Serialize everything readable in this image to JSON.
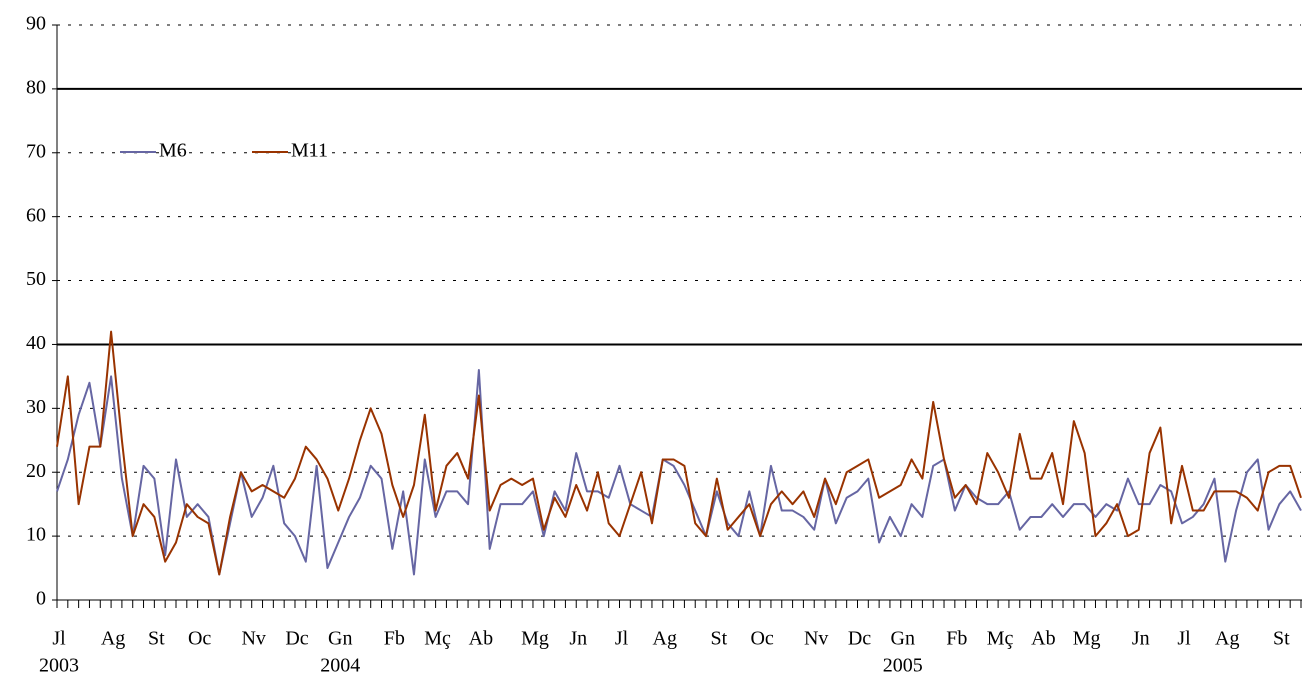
{
  "chart_data": {
    "type": "line",
    "categories": [
      "Jl",
      null,
      null,
      null,
      null,
      "Ag",
      null,
      null,
      null,
      "St",
      null,
      null,
      null,
      "Oc",
      null,
      null,
      null,
      null,
      "Nv",
      null,
      null,
      null,
      "Dc",
      null,
      null,
      null,
      "Gn",
      null,
      null,
      null,
      null,
      "Fb",
      null,
      null,
      null,
      "Mç",
      null,
      null,
      null,
      "Ab",
      null,
      null,
      null,
      null,
      "Mg",
      null,
      null,
      null,
      "Jn",
      null,
      null,
      null,
      "Jl",
      null,
      null,
      null,
      "Ag",
      null,
      null,
      null,
      null,
      "St",
      null,
      null,
      null,
      "Oc",
      null,
      null,
      null,
      null,
      "Nv",
      null,
      null,
      null,
      "Dc",
      null,
      null,
      null,
      "Gn",
      null,
      null,
      null,
      null,
      "Fb",
      null,
      null,
      null,
      "Mç",
      null,
      null,
      null,
      "Ab",
      null,
      null,
      null,
      "Mg",
      null,
      null,
      null,
      null,
      "Jn",
      null,
      null,
      null,
      "Jl",
      null,
      null,
      null,
      "Ag",
      null,
      null,
      null,
      null,
      "St",
      null,
      null
    ],
    "category_years": [
      "2003",
      null,
      null,
      null,
      null,
      null,
      null,
      null,
      null,
      null,
      null,
      null,
      null,
      null,
      null,
      null,
      null,
      null,
      null,
      null,
      null,
      null,
      null,
      null,
      null,
      null,
      "2004",
      null,
      null,
      null,
      null,
      null,
      null,
      null,
      null,
      null,
      null,
      null,
      null,
      null,
      null,
      null,
      null,
      null,
      null,
      null,
      null,
      null,
      null,
      null,
      null,
      null,
      null,
      null,
      null,
      null,
      null,
      null,
      null,
      null,
      null,
      null,
      null,
      null,
      null,
      null,
      null,
      null,
      null,
      null,
      null,
      null,
      null,
      null,
      null,
      null,
      null,
      null,
      "2005",
      null,
      null,
      null,
      null,
      null,
      null,
      null,
      null,
      null,
      null,
      null,
      null,
      null,
      null,
      null,
      null,
      null,
      null,
      null,
      null,
      null,
      null,
      null,
      null,
      null,
      null,
      null,
      null,
      null,
      null,
      null,
      null,
      null,
      null,
      null,
      null,
      null
    ],
    "series": [
      {
        "name": "M6",
        "color": "#6666a3",
        "values": [
          17,
          22,
          29,
          34,
          24,
          35,
          19,
          10,
          21,
          19,
          7,
          22,
          13,
          15,
          13,
          4,
          12,
          20,
          13,
          16,
          21,
          12,
          10,
          6,
          21,
          5,
          9,
          13,
          16,
          21,
          19,
          8,
          17,
          4,
          22,
          13,
          17,
          17,
          15,
          36,
          8,
          15,
          15,
          15,
          17,
          10,
          17,
          14,
          23,
          17,
          17,
          16,
          21,
          15,
          14,
          13,
          22,
          21,
          18,
          14,
          10,
          17,
          12,
          10,
          17,
          10,
          21,
          14,
          14,
          13,
          11,
          19,
          12,
          16,
          17,
          19,
          9,
          13,
          10,
          15,
          13,
          21,
          22,
          14,
          18,
          16,
          15,
          15,
          17,
          11,
          13,
          13,
          15,
          13,
          15,
          15,
          13,
          15,
          14,
          19,
          15,
          15,
          18,
          17,
          12,
          13,
          15,
          19,
          6,
          14,
          20,
          22,
          11,
          15,
          17,
          14
        ]
      },
      {
        "name": "M11",
        "color": "#993300",
        "values": [
          24,
          35,
          15,
          24,
          24,
          42,
          25,
          10,
          15,
          13,
          6,
          9,
          15,
          13,
          12,
          4,
          13,
          20,
          17,
          18,
          17,
          16,
          19,
          24,
          22,
          19,
          14,
          19,
          25,
          30,
          26,
          18,
          13,
          18,
          29,
          14,
          21,
          23,
          19,
          32,
          14,
          18,
          19,
          18,
          19,
          11,
          16,
          13,
          18,
          14,
          20,
          12,
          10,
          15,
          20,
          12,
          22,
          22,
          21,
          12,
          10,
          19,
          11,
          13,
          15,
          10,
          15,
          17,
          15,
          17,
          13,
          19,
          15,
          20,
          21,
          22,
          16,
          17,
          18,
          22,
          19,
          31,
          22,
          16,
          18,
          15,
          23,
          20,
          16,
          26,
          19,
          19,
          23,
          15,
          28,
          23,
          10,
          12,
          15,
          10,
          11,
          23,
          27,
          12,
          21,
          14,
          14,
          17,
          17,
          17,
          16,
          14,
          20,
          21,
          21,
          16
        ]
      }
    ],
    "ylim": [
      0,
      90
    ],
    "yticks": [
      0,
      10,
      20,
      30,
      40,
      50,
      60,
      70,
      80,
      90
    ],
    "grid": true,
    "reference_lines": [
      40,
      80
    ],
    "legend": "top-left"
  }
}
